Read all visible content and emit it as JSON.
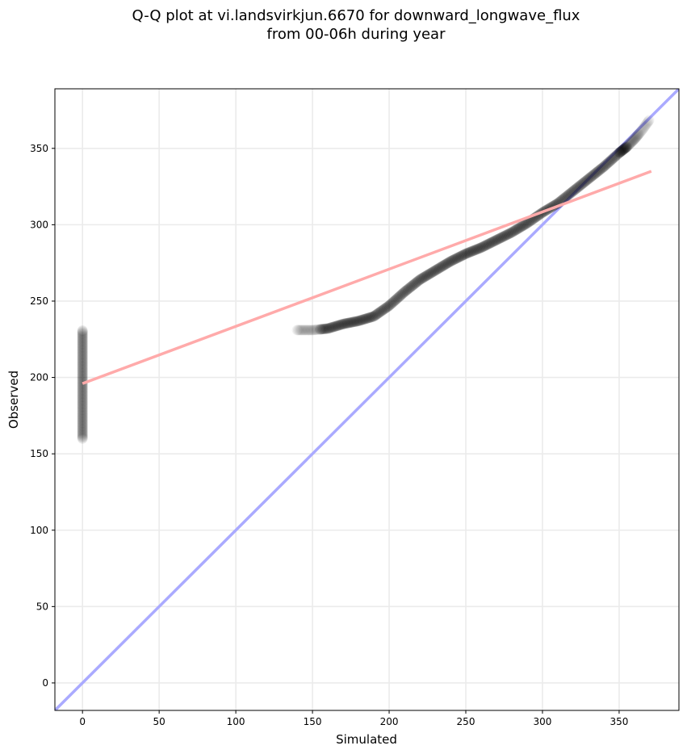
{
  "chart_data": {
    "type": "scatter",
    "title_line1": "Q-Q plot at vi.landsvirkjun.6670 for downward_longwave_flux",
    "title_line2": "from 00-06h during year",
    "xlabel": "Simulated",
    "ylabel": "Observed",
    "xlim": [
      -18,
      389
    ],
    "ylim": [
      -18,
      389
    ],
    "xticks": [
      0,
      50,
      100,
      150,
      200,
      250,
      300,
      350
    ],
    "yticks": [
      0,
      50,
      100,
      150,
      200,
      250,
      300,
      350
    ],
    "grid": true,
    "colors": {
      "points": "#000000",
      "identity_line": "#aaaaff",
      "fit_line": "#ffaaaa"
    },
    "qq_points_cluster_at_zero": {
      "x": 0,
      "y_min": 160,
      "y_max": 231
    },
    "qq_curve": {
      "x": [
        140,
        150,
        160,
        170,
        180,
        190,
        200,
        210,
        220,
        230,
        240,
        250,
        260,
        270,
        280,
        290,
        300,
        310,
        320,
        330,
        340,
        350,
        355,
        360,
        365,
        370
      ],
      "y": [
        231,
        231,
        232,
        235,
        237,
        240,
        247,
        256,
        264,
        270,
        276,
        281,
        285,
        290,
        295,
        301,
        308,
        314,
        322,
        330,
        338,
        347,
        351,
        356,
        362,
        369
      ]
    },
    "identity_line": {
      "x": [
        -18,
        389
      ],
      "y": [
        -18,
        389
      ]
    },
    "fit_line": {
      "x": [
        0,
        371
      ],
      "y": [
        196,
        335
      ]
    }
  }
}
